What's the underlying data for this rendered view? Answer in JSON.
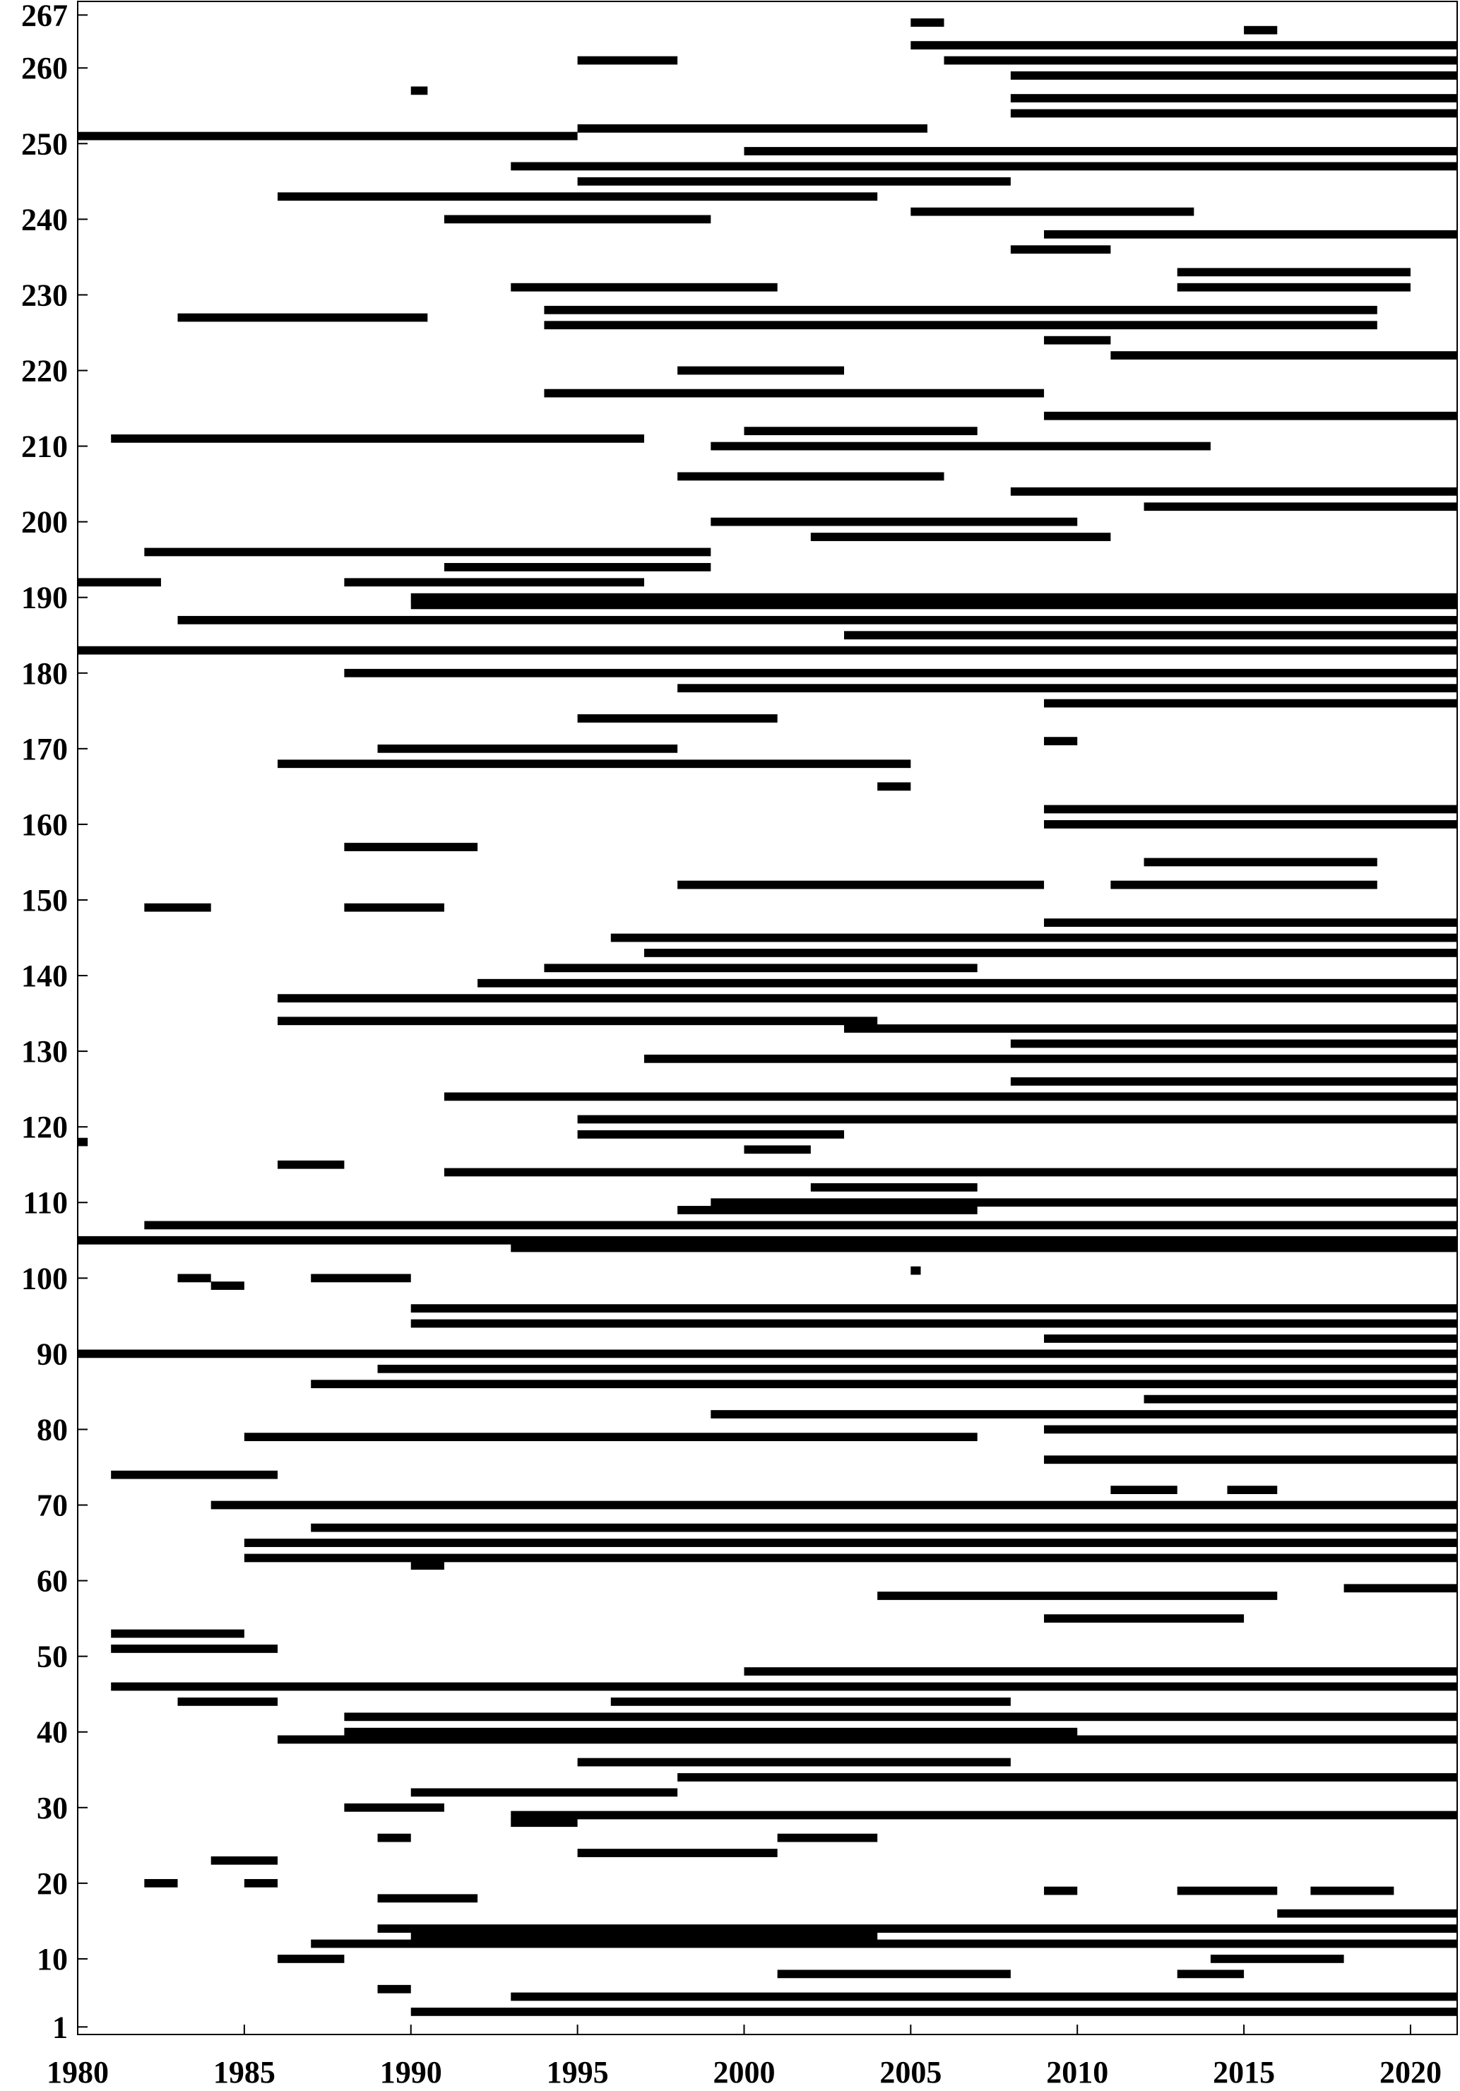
{
  "chart_data": {
    "type": "heatmap",
    "title": "",
    "xlabel": "",
    "ylabel": "",
    "xlim": [
      1980,
      2021.4
    ],
    "ylim": [
      0,
      268.8
    ],
    "grid": false,
    "mark_color": "#000000",
    "background_color": "#ffffff",
    "x_ticks": [
      1980,
      1985,
      1990,
      1995,
      2000,
      2005,
      2010,
      2015,
      2020
    ],
    "x_tick_labels": [
      "1980",
      "1985",
      "1990",
      "1995",
      "2000",
      "2005",
      "2010",
      "2015",
      "2020"
    ],
    "y_ticks": [
      1,
      10,
      20,
      30,
      40,
      50,
      60,
      70,
      80,
      90,
      100,
      110,
      120,
      130,
      140,
      150,
      160,
      170,
      180,
      190,
      200,
      210,
      220,
      230,
      240,
      250,
      260,
      267
    ],
    "y_tick_labels": [
      "1",
      "10",
      "20",
      "30",
      "40",
      "50",
      "60",
      "70",
      "80",
      "90",
      "100",
      "110",
      "120",
      "130",
      "140",
      "150",
      "160",
      "170",
      "180",
      "190",
      "200",
      "210",
      "220",
      "230",
      "240",
      "250",
      "260",
      "267"
    ],
    "segments_format": [
      "row",
      "start_year",
      "end_year"
    ],
    "segments": [
      [
        3,
        1990,
        2022
      ],
      [
        5,
        1993,
        2022
      ],
      [
        6,
        1989,
        1990
      ],
      [
        8,
        2001,
        2008
      ],
      [
        8,
        2013,
        2015
      ],
      [
        10,
        1986,
        1988
      ],
      [
        10,
        2014,
        2018
      ],
      [
        12,
        1987,
        2022
      ],
      [
        13,
        1990,
        2004
      ],
      [
        14,
        1989,
        2022
      ],
      [
        16,
        2016,
        2022
      ],
      [
        18,
        1989,
        1992
      ],
      [
        19,
        2009,
        2010
      ],
      [
        19,
        2013,
        2016
      ],
      [
        19,
        2017,
        2019.5
      ],
      [
        20,
        1982,
        1983
      ],
      [
        20,
        1985,
        1986
      ],
      [
        23,
        1984,
        1986
      ],
      [
        24,
        1995,
        2001
      ],
      [
        26,
        1989,
        1990
      ],
      [
        26,
        2001,
        2004
      ],
      [
        28,
        1993,
        1995
      ],
      [
        29,
        1993,
        2022
      ],
      [
        30,
        1988,
        1991
      ],
      [
        32,
        1990,
        1998
      ],
      [
        34,
        1998,
        2022
      ],
      [
        36,
        1995,
        2008
      ],
      [
        39,
        1986,
        2022
      ],
      [
        40,
        1988,
        2010
      ],
      [
        42,
        1988,
        2022
      ],
      [
        44,
        1983,
        1986
      ],
      [
        44,
        1996,
        2008
      ],
      [
        46,
        1981,
        2022
      ],
      [
        48,
        2000,
        2022
      ],
      [
        51,
        1981,
        1986
      ],
      [
        53,
        1981,
        1985
      ],
      [
        55,
        2009,
        2015
      ],
      [
        58,
        2004,
        2016
      ],
      [
        59,
        2018,
        2022
      ],
      [
        62,
        1990,
        1991
      ],
      [
        63,
        1985,
        2022
      ],
      [
        65,
        1985,
        2022
      ],
      [
        67,
        1987,
        2022
      ],
      [
        70,
        1984,
        2022
      ],
      [
        72,
        2011,
        2013
      ],
      [
        72,
        2014.5,
        2016
      ],
      [
        74,
        1981,
        1986
      ],
      [
        76,
        2009,
        2022
      ],
      [
        79,
        1985,
        2007
      ],
      [
        80,
        2009,
        2022
      ],
      [
        82,
        1999,
        2022
      ],
      [
        84,
        2012,
        2022
      ],
      [
        86,
        1987,
        2022
      ],
      [
        88,
        1989,
        2022
      ],
      [
        90,
        1980,
        2022
      ],
      [
        92,
        2009,
        2022
      ],
      [
        94,
        1990,
        2022
      ],
      [
        96,
        1990,
        2022
      ],
      [
        99,
        1984,
        1985
      ],
      [
        100,
        1983,
        1984
      ],
      [
        100,
        1987,
        1990
      ],
      [
        101,
        2005,
        2005.3
      ],
      [
        104,
        1993,
        2022
      ],
      [
        105,
        1980,
        2022
      ],
      [
        107,
        1982,
        2022
      ],
      [
        109,
        1998,
        2007
      ],
      [
        110,
        1999,
        2022
      ],
      [
        112,
        2002,
        2007
      ],
      [
        114,
        1991,
        2022
      ],
      [
        115,
        1986,
        1988
      ],
      [
        117,
        2000,
        2002
      ],
      [
        118,
        1980,
        1980.3
      ],
      [
        119,
        1995,
        2003
      ],
      [
        121,
        1995,
        2022
      ],
      [
        124,
        1991,
        2022
      ],
      [
        126,
        2008,
        2022
      ],
      [
        129,
        1997,
        2022
      ],
      [
        131,
        2008,
        2022
      ],
      [
        133,
        2003,
        2022
      ],
      [
        134,
        1986,
        2004
      ],
      [
        137,
        1986,
        2022
      ],
      [
        139,
        1992,
        2022
      ],
      [
        141,
        1994,
        2007
      ],
      [
        143,
        1997,
        2022
      ],
      [
        145,
        1996,
        2022
      ],
      [
        147,
        2009,
        2022
      ],
      [
        149,
        1982,
        1984
      ],
      [
        149,
        1988,
        1991
      ],
      [
        152,
        1998,
        2009
      ],
      [
        152,
        2011,
        2019
      ],
      [
        155,
        2012,
        2019
      ],
      [
        157,
        1988,
        1992
      ],
      [
        160,
        2009,
        2022
      ],
      [
        162,
        2009,
        2022
      ],
      [
        165,
        2004,
        2005
      ],
      [
        168,
        1986,
        2005
      ],
      [
        170,
        1989,
        1998
      ],
      [
        171,
        2009,
        2010
      ],
      [
        174,
        1995,
        2001
      ],
      [
        176,
        2009,
        2022
      ],
      [
        178,
        1998,
        2022
      ],
      [
        180,
        1988,
        2022
      ],
      [
        183,
        1980,
        2022
      ],
      [
        185,
        2003,
        2022
      ],
      [
        187,
        1983,
        2022
      ],
      [
        189,
        1990,
        2022
      ],
      [
        190,
        1990,
        2022
      ],
      [
        192,
        1980,
        1982.5
      ],
      [
        192,
        1988,
        1997
      ],
      [
        194,
        1991,
        1999
      ],
      [
        196,
        1982,
        1999
      ],
      [
        198,
        2002,
        2011
      ],
      [
        200,
        1999,
        2010
      ],
      [
        202,
        2012,
        2022
      ],
      [
        204,
        2008,
        2022
      ],
      [
        206,
        1998,
        2006
      ],
      [
        210,
        1999,
        2014
      ],
      [
        211,
        1981,
        1997
      ],
      [
        212,
        2000,
        2007
      ],
      [
        214,
        2009,
        2022
      ],
      [
        217,
        1994,
        2009
      ],
      [
        220,
        1998,
        2003
      ],
      [
        222,
        2011,
        2022
      ],
      [
        224,
        2009,
        2011
      ],
      [
        226,
        1994,
        2019
      ],
      [
        227,
        1983,
        1990.5
      ],
      [
        228,
        1994,
        2019
      ],
      [
        231,
        1993,
        2001
      ],
      [
        231,
        2013,
        2020
      ],
      [
        233,
        2013,
        2020
      ],
      [
        236,
        2008,
        2011
      ],
      [
        238,
        2009,
        2022
      ],
      [
        240,
        1991,
        1999
      ],
      [
        241,
        2005,
        2013.5
      ],
      [
        243,
        1986,
        2004
      ],
      [
        245,
        1995,
        2008
      ],
      [
        247,
        1993,
        2022
      ],
      [
        249,
        2000,
        2022
      ],
      [
        251,
        1980,
        1995
      ],
      [
        252,
        1995,
        2005.5
      ],
      [
        254,
        2008,
        2022
      ],
      [
        256,
        2008,
        2022
      ],
      [
        257,
        1990,
        1990.5
      ],
      [
        259,
        2008,
        2022
      ],
      [
        261,
        1995,
        1998
      ],
      [
        261,
        2006,
        2022
      ],
      [
        263,
        2005,
        2022
      ],
      [
        265,
        2015,
        2016
      ],
      [
        266,
        2005,
        2006
      ]
    ]
  }
}
